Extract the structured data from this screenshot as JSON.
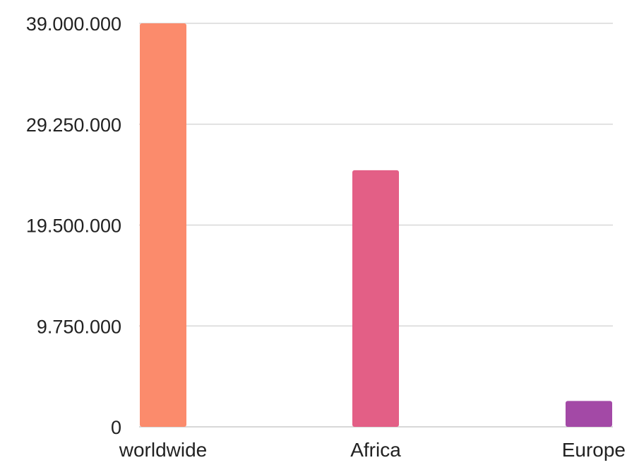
{
  "chart_data": {
    "type": "bar",
    "title": "",
    "xlabel": "",
    "ylabel": "",
    "categories": [
      "worldwide",
      "Africa",
      "Europe"
    ],
    "values": [
      39000000,
      24800000,
      2500000
    ],
    "colors": [
      "#fb8b6c",
      "#e35f86",
      "#a349a6"
    ],
    "ylim": [
      0,
      39000000
    ],
    "yticks": [
      0,
      9750000,
      19500000,
      29250000,
      39000000
    ],
    "ytick_labels": [
      "0",
      "9.750.000",
      "19.500.000",
      "29.250.000",
      "39.000.000"
    ],
    "grid": true,
    "gridline_color": "#d8d8d8",
    "legend": "none"
  }
}
